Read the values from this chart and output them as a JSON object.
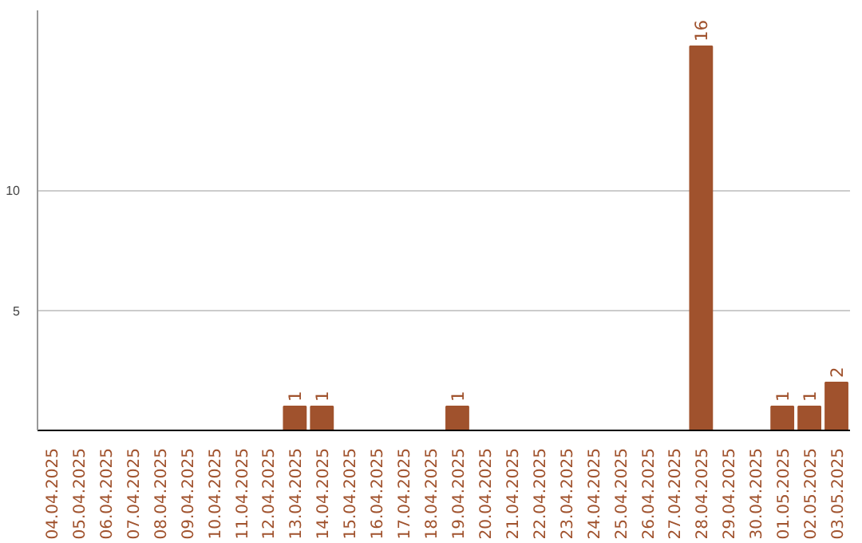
{
  "chart_data": {
    "type": "bar",
    "categories": [
      "04.04.2025",
      "05.04.2025",
      "06.04.2025",
      "07.04.2025",
      "08.04.2025",
      "09.04.2025",
      "10.04.2025",
      "11.04.2025",
      "12.04.2025",
      "13.04.2025",
      "14.04.2025",
      "15.04.2025",
      "16.04.2025",
      "17.04.2025",
      "18.04.2025",
      "19.04.2025",
      "20.04.2025",
      "21.04.2025",
      "22.04.2025",
      "23.04.2025",
      "24.04.2025",
      "25.04.2025",
      "26.04.2025",
      "27.04.2025",
      "28.04.2025",
      "29.04.2025",
      "30.04.2025",
      "01.05.2025",
      "02.05.2025",
      "03.05.2025"
    ],
    "values": [
      0,
      0,
      0,
      0,
      0,
      0,
      0,
      0,
      0,
      1,
      1,
      0,
      0,
      0,
      0,
      1,
      0,
      0,
      0,
      0,
      0,
      0,
      0,
      0,
      16,
      0,
      0,
      1,
      1,
      2
    ],
    "value_labels": [
      null,
      null,
      null,
      null,
      null,
      null,
      null,
      null,
      null,
      "1",
      "1",
      null,
      null,
      null,
      null,
      "1",
      null,
      null,
      null,
      null,
      null,
      null,
      null,
      null,
      "16",
      null,
      null,
      "1",
      "1",
      "2"
    ],
    "color": "#a0522d",
    "ylim": [
      0,
      17.5
    ],
    "yticks": [
      5,
      10
    ],
    "grid": "y"
  }
}
